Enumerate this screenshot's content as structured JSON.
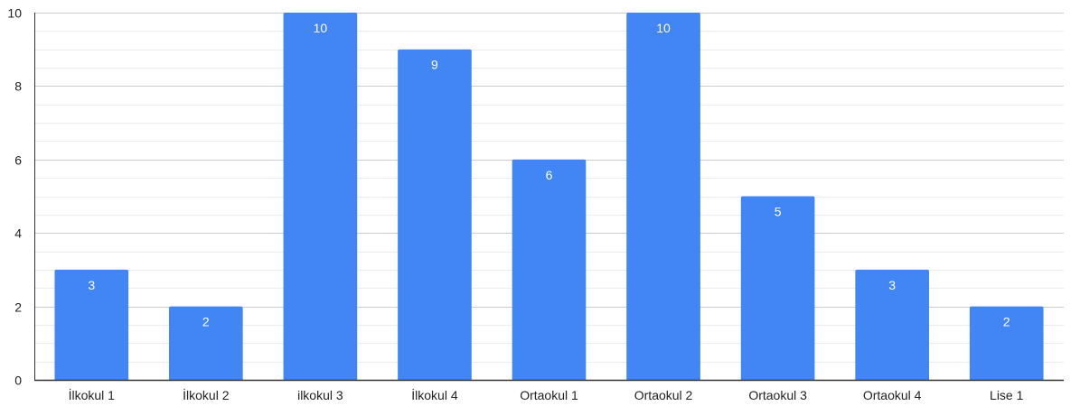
{
  "chart_data": {
    "type": "bar",
    "categories": [
      "İlkokul 1",
      "İlkokul 2",
      "ilkokul 3",
      "İlkokul 4",
      "Ortaokul 1",
      "Ortaokul 2",
      "Ortaokul 3",
      "Ortaokul 4",
      "Lise 1"
    ],
    "values": [
      3,
      2,
      10,
      9,
      6,
      10,
      5,
      3,
      2
    ],
    "title": "",
    "xlabel": "",
    "ylabel": "",
    "ylim": [
      0,
      10
    ],
    "yticks": [
      0,
      2,
      4,
      6,
      8,
      10
    ],
    "minor_gridlines": true,
    "legend": "none",
    "data_labels": "inside-top",
    "colors": {
      "bar": "#4285F4",
      "grid_major": "#cccccc",
      "grid_minor": "#ececec",
      "axis": "#333333",
      "tick_text": "#222222",
      "data_label_text": "#ffffff"
    }
  }
}
